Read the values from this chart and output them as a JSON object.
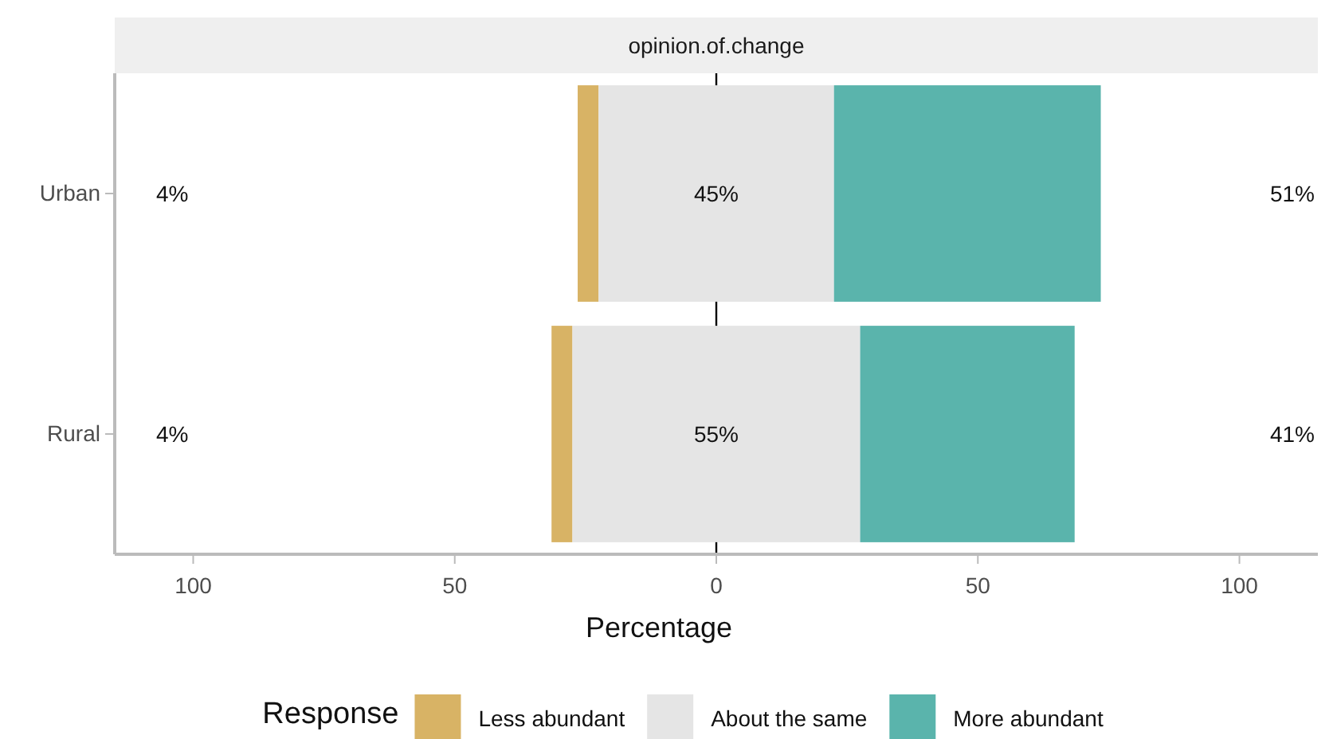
{
  "chart_data": {
    "type": "bar",
    "orientation": "horizontal",
    "title": "opinion.of.change",
    "xlabel": "Percentage",
    "legend_title": "Response",
    "legend": "bottom",
    "categories": [
      "Urban",
      "Rural"
    ],
    "xlim": [
      -115,
      115
    ],
    "xticks": [
      {
        "value": -100,
        "label": "100"
      },
      {
        "value": -50,
        "label": "50"
      },
      0,
      50,
      100
    ],
    "ref_lines": [
      {
        "axis": "x",
        "value": 0,
        "color": "#000000"
      }
    ],
    "series": [
      {
        "name": "Less abundant",
        "color": "#d8b365",
        "base": [
          -26.5,
          -31.5
        ],
        "values": [
          4,
          4
        ],
        "value_labels": [
          "4%",
          "4%"
        ]
      },
      {
        "name": "About the same",
        "color": "#e5e5e5",
        "base": [
          -22.5,
          -27.5
        ],
        "values": [
          45,
          55
        ],
        "value_labels": [
          "45%",
          "55%"
        ]
      },
      {
        "name": "More abundant",
        "color": "#5ab4ac",
        "base": [
          22.5,
          27.5
        ],
        "values": [
          51,
          41
        ],
        "value_labels": [
          "51%",
          "41%"
        ]
      }
    ]
  }
}
